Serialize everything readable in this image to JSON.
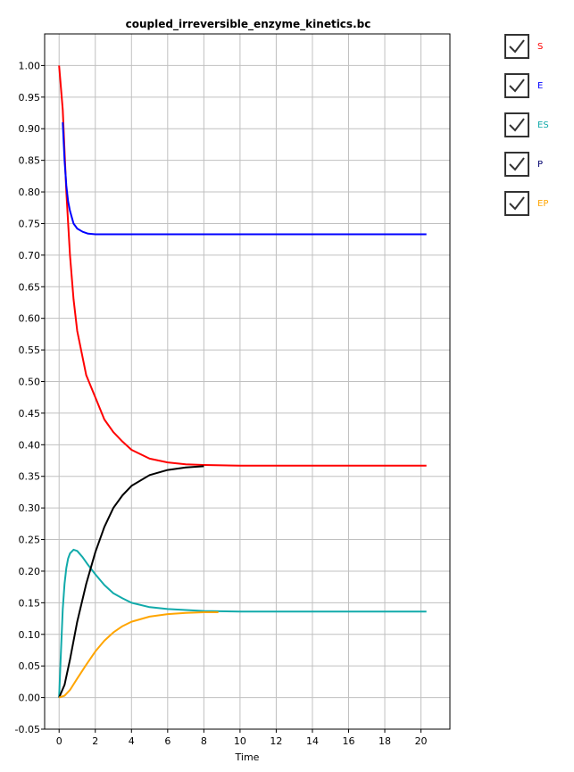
{
  "chart_data": {
    "type": "line",
    "title": "coupled_irreversible_enzyme_kinetics.bc",
    "xlabel": "Time",
    "ylabel": "",
    "xlim": [
      -0.8,
      21.6
    ],
    "ylim": [
      -0.05,
      1.05
    ],
    "xticks": [
      0,
      2,
      4,
      6,
      8,
      10,
      12,
      14,
      16,
      18,
      20
    ],
    "yticks": [
      -0.05,
      0.0,
      0.05,
      0.1,
      0.15,
      0.2,
      0.25,
      0.3,
      0.35,
      0.4,
      0.45,
      0.5,
      0.55,
      0.6,
      0.65,
      0.7,
      0.75,
      0.8,
      0.85,
      0.9,
      0.95,
      1.0
    ],
    "grid": true,
    "legend_position": "right",
    "series": [
      {
        "name": "S",
        "color": "#ff0000",
        "x": [
          0,
          0.2,
          0.4,
          0.6,
          0.8,
          1.0,
          1.5,
          2.0,
          2.5,
          3.0,
          3.5,
          4.0,
          5.0,
          6.0,
          7.0,
          8.0,
          10.0,
          12.0,
          14.0,
          16.0,
          18.0,
          20.0,
          20.3
        ],
        "y": [
          1.0,
          0.93,
          0.8,
          0.7,
          0.63,
          0.58,
          0.51,
          0.475,
          0.44,
          0.42,
          0.405,
          0.392,
          0.378,
          0.372,
          0.369,
          0.368,
          0.367,
          0.367,
          0.367,
          0.367,
          0.367,
          0.367,
          0.367
        ]
      },
      {
        "name": "E",
        "color": "#0000ff",
        "x": [
          0.2,
          0.3,
          0.4,
          0.5,
          0.6,
          0.8,
          1.0,
          1.3,
          1.6,
          2.0,
          3.0,
          5.0,
          8.0,
          12.0,
          16.0,
          20.3
        ],
        "y": [
          0.91,
          0.85,
          0.81,
          0.785,
          0.77,
          0.75,
          0.742,
          0.737,
          0.734,
          0.733,
          0.733,
          0.733,
          0.733,
          0.733,
          0.733,
          0.733
        ]
      },
      {
        "name": "ES",
        "color": "#11aaaa",
        "x": [
          0,
          0.1,
          0.2,
          0.3,
          0.4,
          0.5,
          0.6,
          0.8,
          1.0,
          1.3,
          1.6,
          2.0,
          2.5,
          3.0,
          3.5,
          4.0,
          5.0,
          6.0,
          8.0,
          10.0,
          14.0,
          20.3
        ],
        "y": [
          0.0,
          0.07,
          0.14,
          0.18,
          0.205,
          0.22,
          0.228,
          0.234,
          0.232,
          0.222,
          0.21,
          0.195,
          0.178,
          0.165,
          0.157,
          0.15,
          0.143,
          0.14,
          0.137,
          0.136,
          0.136,
          0.136
        ]
      },
      {
        "name": "P",
        "color": "#000000",
        "x": [
          0,
          0.3,
          0.6,
          1.0,
          1.5,
          2.0,
          2.5,
          3.0,
          3.5,
          4.0,
          5.0,
          6.0,
          7.0,
          8.0
        ],
        "y": [
          0.0,
          0.02,
          0.06,
          0.12,
          0.18,
          0.23,
          0.27,
          0.3,
          0.32,
          0.335,
          0.352,
          0.36,
          0.364,
          0.366
        ]
      },
      {
        "name": "EP",
        "color": "#ffa500",
        "x": [
          0,
          0.3,
          0.6,
          1.0,
          1.5,
          2.0,
          2.5,
          3.0,
          3.5,
          4.0,
          5.0,
          6.0,
          7.0,
          8.0,
          8.8
        ],
        "y": [
          0.0,
          0.003,
          0.012,
          0.03,
          0.052,
          0.073,
          0.09,
          0.103,
          0.113,
          0.12,
          0.128,
          0.132,
          0.134,
          0.135,
          0.135
        ]
      }
    ]
  }
}
